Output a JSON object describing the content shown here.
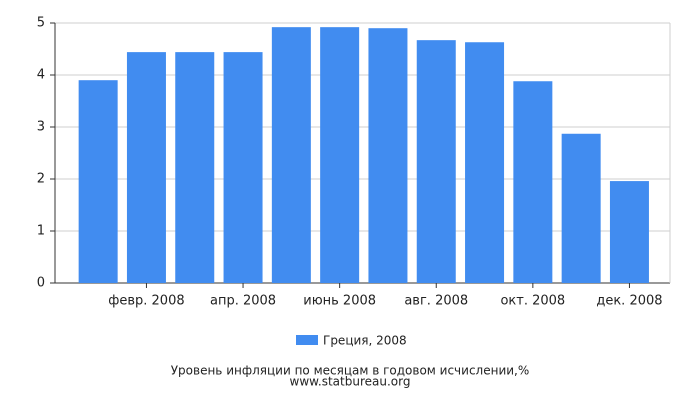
{
  "chart_data": {
    "type": "bar",
    "title": "Уровень инфляции по месяцам в годовом исчислении,%",
    "source": "www.statbureau.org",
    "categories": [
      null,
      "февр. 2008",
      null,
      "апр. 2008",
      null,
      "июнь 2008",
      null,
      "авг. 2008",
      null,
      "окт. 2008",
      null,
      "дек. 2008"
    ],
    "series": [
      {
        "name": "Греция, 2008",
        "color": "#418cf0",
        "values": [
          3.9,
          4.44,
          4.44,
          4.44,
          4.92,
          4.92,
          4.9,
          4.67,
          4.63,
          3.88,
          2.87,
          1.96
        ]
      }
    ],
    "ylim": [
      0,
      5
    ],
    "yticks": [
      0,
      1,
      2,
      3,
      4,
      5
    ],
    "grid": true
  }
}
